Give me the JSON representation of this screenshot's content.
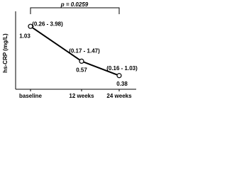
{
  "chart_data": {
    "type": "line",
    "y_label": "hs-CRP (mg/L)",
    "categories": [
      "baseline",
      "12 weeks",
      "24 weeks"
    ],
    "series": [
      {
        "values": [
          1.03,
          0.57,
          0.38
        ],
        "color": "#000000"
      }
    ],
    "annotations": [
      "(0.26 - 3.98)",
      "(0.17 - 1.47)",
      "(0.16 - 1.03)"
    ],
    "p_label": "p = 0.0259",
    "ylim": [
      0.2,
      1.2
    ]
  }
}
